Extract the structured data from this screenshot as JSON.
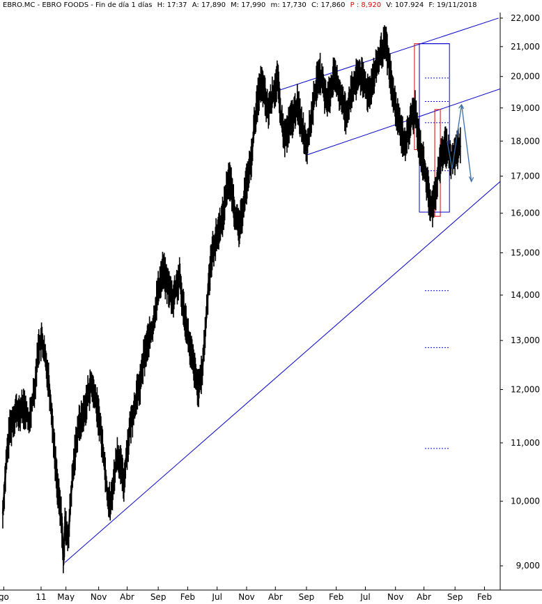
{
  "header": {
    "symbol": "EBRO.MC - EBRO FOODS - Fin de día 1 días",
    "high": "H: 17:37",
    "open": "A: 17,890",
    "max": "M: 17,990",
    "min": "m: 17,730",
    "close": "C: 17,860",
    "change": "P : 8,920",
    "volume": "V: 107.924",
    "date": "F: 19/11/2018"
  },
  "colors": {
    "price": "#000000",
    "trendline": "#0000cc",
    "box_red": "#e00000",
    "box_blue": "#0000cc",
    "projection": "#3a6fa8",
    "background": "#ffffff"
  },
  "chart_data": {
    "type": "line",
    "title": "",
    "xlabel": "",
    "ylabel": "",
    "y_scale": "log",
    "ylim": [
      8.75,
      22.2
    ],
    "y_ticks": [
      "9,000",
      "10,000",
      "11,000",
      "12,000",
      "13,000",
      "14,000",
      "15,000",
      "16,000",
      "17,000",
      "18,000",
      "19,000",
      "20,000",
      "21,000",
      "22,000"
    ],
    "x_ticks": [
      "go",
      "11",
      "May",
      "Nov",
      "Abr",
      "Sep",
      "Feb",
      "Jul",
      "Nov",
      "Abr",
      "Sep",
      "Feb",
      "Jul",
      "Nov",
      "Abr",
      "Sep",
      "Feb"
    ],
    "x_tick_index": [
      0.3,
      11.7,
      19.3,
      29.3,
      38.0,
      47.5,
      56.5,
      65.5,
      74.5,
      83.3,
      92.8,
      101.9,
      110.8,
      120.0,
      128.7,
      138.2,
      147.2
    ],
    "xlim": [
      0,
      152
    ],
    "series": [
      {
        "name": "",
        "x": [
          0,
          1,
          2,
          3,
          4,
          5,
          6,
          8,
          10,
          11,
          12,
          13,
          14,
          15,
          16,
          17,
          18,
          18.5,
          19,
          20,
          21,
          22,
          23,
          24,
          25,
          26,
          27,
          28,
          29,
          30,
          31,
          32,
          33,
          34,
          35,
          36,
          37,
          38,
          39,
          40,
          41,
          42,
          43,
          44,
          45,
          46,
          47,
          48,
          49,
          50,
          51,
          52,
          53,
          54,
          55,
          56,
          57,
          58,
          59,
          60,
          61,
          62,
          63,
          64,
          65,
          66,
          67,
          68,
          69,
          70,
          71,
          72,
          73,
          74,
          75,
          76,
          77,
          78,
          79,
          80,
          81,
          82,
          83,
          84,
          85,
          86,
          87,
          88,
          89,
          90,
          91,
          92,
          93,
          94,
          95,
          96,
          97,
          98,
          99,
          100,
          101,
          102,
          103,
          104,
          105,
          106,
          107,
          108,
          109,
          110,
          111,
          112,
          113,
          114,
          115,
          116,
          117,
          118,
          119,
          120,
          121,
          122,
          123,
          124,
          125,
          126,
          127,
          128,
          129,
          130,
          131,
          132,
          133,
          134,
          135,
          136,
          137,
          138,
          139,
          140
        ],
        "values": [
          9.8,
          10.6,
          11.2,
          11.4,
          11.6,
          11.5,
          11.7,
          11.4,
          12.2,
          12.9,
          13.0,
          12.6,
          12.2,
          11.5,
          10.7,
          10.1,
          9.7,
          9.1,
          9.6,
          9.4,
          10.2,
          10.8,
          11.3,
          11.4,
          11.6,
          11.9,
          12.1,
          11.9,
          11.6,
          11.2,
          10.7,
          10.1,
          9.95,
          10.4,
          10.8,
          10.6,
          10.3,
          10.9,
          11.3,
          11.6,
          11.9,
          12.1,
          12.6,
          12.9,
          13.1,
          13.3,
          13.9,
          14.3,
          14.6,
          14.3,
          14.1,
          13.9,
          14.2,
          14.4,
          13.8,
          13.4,
          12.9,
          12.6,
          12.2,
          12.0,
          12.4,
          13.3,
          14.4,
          15.0,
          15.3,
          15.6,
          15.8,
          16.4,
          17.0,
          16.6,
          16.0,
          15.6,
          15.9,
          16.6,
          17.0,
          17.5,
          18.6,
          19.3,
          19.8,
          19.4,
          18.9,
          19.2,
          19.6,
          19.9,
          18.7,
          18.1,
          18.3,
          18.6,
          18.8,
          19.1,
          18.7,
          18.2,
          17.9,
          18.5,
          19.2,
          19.8,
          20.1,
          19.6,
          19.2,
          19.5,
          20.0,
          19.8,
          19.5,
          19.1,
          18.8,
          19.3,
          19.6,
          19.9,
          20.1,
          19.9,
          19.6,
          19.5,
          19.9,
          20.2,
          20.6,
          20.9,
          21.1,
          20.4,
          19.6,
          19.0,
          18.6,
          18.2,
          17.9,
          18.3,
          18.7,
          18.9,
          18.1,
          17.6,
          17.2,
          16.6,
          16.1,
          16.4,
          17.1,
          17.5,
          17.9,
          17.7,
          17.4,
          17.6,
          17.8,
          17.86
        ]
      }
    ],
    "annotations": {
      "trendlines": [
        {
          "x1": 19.0,
          "y1": 9.05,
          "x2": 152,
          "y2": 16.85
        },
        {
          "x1": 93.0,
          "y1": 17.6,
          "x2": 152,
          "y2": 19.6
        },
        {
          "x1": 82.8,
          "y1": 19.5,
          "x2": 151.5,
          "y2": 22.0
        }
      ],
      "boxes": [
        {
          "color": "red",
          "x1": 125.8,
          "y1": 17.75,
          "x2": 127.3,
          "y2": 21.1
        },
        {
          "color": "red",
          "x1": 132.0,
          "y1": 15.92,
          "x2": 133.7,
          "y2": 18.95
        },
        {
          "color": "blue",
          "x1": 127.3,
          "y1": 16.03,
          "x2": 136.5,
          "y2": 21.1
        }
      ],
      "levels": [
        {
          "x1": 127.3,
          "x2": 136.5,
          "y": 21.1
        },
        {
          "x1": 129.0,
          "x2": 136.5,
          "y": 19.95
        },
        {
          "x1": 129.0,
          "x2": 136.5,
          "y": 19.2
        },
        {
          "x1": 129.0,
          "x2": 136.5,
          "y": 18.55
        },
        {
          "x1": 129.0,
          "x2": 136.5,
          "y": 17.15
        },
        {
          "x1": 129.0,
          "x2": 136.5,
          "y": 14.1
        },
        {
          "x1": 129.0,
          "x2": 136.5,
          "y": 12.85
        },
        {
          "x1": 129.0,
          "x2": 136.5,
          "y": 10.9
        }
      ],
      "projection": [
        {
          "x": 135.8,
          "y": 18.0
        },
        {
          "x": 137.3,
          "y": 17.2
        },
        {
          "x": 140.2,
          "y": 19.1
        },
        {
          "x": 143.2,
          "y": 16.85
        }
      ]
    }
  }
}
